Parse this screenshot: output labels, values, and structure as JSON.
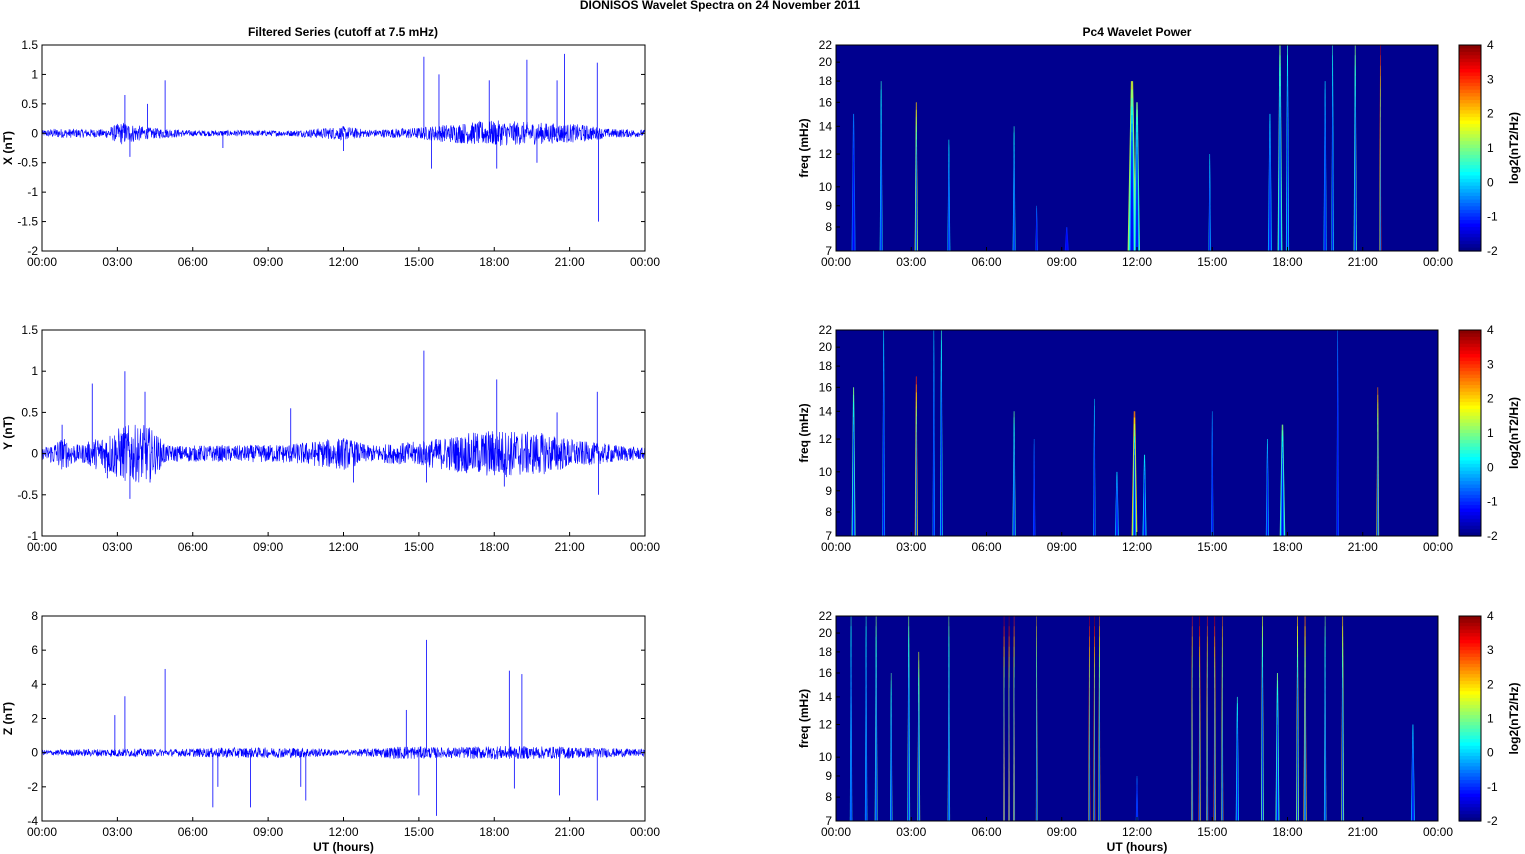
{
  "figure": {
    "title": "DIONISOS Wavelet Spectra on 24 November  2011",
    "left_column_title": "Filtered Series (cutoff at 7.5 mHz)",
    "right_column_title": "Pc4 Wavelet Power"
  },
  "colors": {
    "series_line": "#0000ff",
    "spectrogram_background": "#00008f",
    "axes": "#000000"
  },
  "colormap": "jet",
  "chart_data": [
    {
      "type": "line",
      "title": "Filtered Series (cutoff at 7.5 mHz)",
      "xlabel": "",
      "ylabel": "X (nT)",
      "xlim": [
        0,
        24
      ],
      "ylim": [
        -2,
        1.5
      ],
      "x_ticks": [
        "00:00",
        "03:00",
        "06:00",
        "09:00",
        "12:00",
        "15:00",
        "18:00",
        "21:00",
        "00:00"
      ],
      "y_ticks": [
        "1.5",
        "1",
        "0.5",
        "0",
        "-0.5",
        "-1",
        "-1.5",
        "-2"
      ],
      "y_tick_values": [
        1.5,
        1,
        0.5,
        0,
        -0.5,
        -1,
        -1.5,
        -2
      ],
      "noise_envelope": [
        [
          0,
          0.05
        ],
        [
          0.5,
          0.08
        ],
        [
          2.5,
          0.07
        ],
        [
          3.2,
          0.2
        ],
        [
          4.2,
          0.1
        ],
        [
          6,
          0.05
        ],
        [
          10,
          0.05
        ],
        [
          12,
          0.12
        ],
        [
          13,
          0.06
        ],
        [
          15,
          0.1
        ],
        [
          16,
          0.15
        ],
        [
          18,
          0.22
        ],
        [
          20,
          0.18
        ],
        [
          21.5,
          0.15
        ],
        [
          22.5,
          0.08
        ],
        [
          24,
          0.06
        ]
      ],
      "spikes": [
        [
          3.3,
          0.65
        ],
        [
          3.5,
          -0.4
        ],
        [
          4.2,
          0.5
        ],
        [
          4.9,
          0.9
        ],
        [
          7.2,
          -0.25
        ],
        [
          12,
          -0.3
        ],
        [
          15.2,
          1.3
        ],
        [
          15.5,
          -0.6
        ],
        [
          15.8,
          1.0
        ],
        [
          17.8,
          0.9
        ],
        [
          18.1,
          -0.6
        ],
        [
          19.3,
          1.25
        ],
        [
          19.7,
          -0.5
        ],
        [
          20.5,
          0.9
        ],
        [
          20.8,
          1.35
        ],
        [
          22.1,
          1.2
        ],
        [
          22.15,
          -1.5
        ]
      ]
    },
    {
      "type": "line",
      "title": "",
      "xlabel": "",
      "ylabel": "Y (nT)",
      "xlim": [
        0,
        24
      ],
      "ylim": [
        -1,
        1.5
      ],
      "x_ticks": [
        "00:00",
        "03:00",
        "06:00",
        "09:00",
        "12:00",
        "15:00",
        "18:00",
        "21:00",
        "00:00"
      ],
      "y_ticks": [
        "1.5",
        "1",
        "0.5",
        "0",
        "-0.5",
        "-1"
      ],
      "y_tick_values": [
        1.5,
        1,
        0.5,
        0,
        -0.5,
        -1
      ],
      "noise_envelope": [
        [
          0,
          0.06
        ],
        [
          0.8,
          0.2
        ],
        [
          1.5,
          0.1
        ],
        [
          3.3,
          0.35
        ],
        [
          4.2,
          0.35
        ],
        [
          5,
          0.1
        ],
        [
          8,
          0.1
        ],
        [
          10,
          0.12
        ],
        [
          12,
          0.2
        ],
        [
          13,
          0.1
        ],
        [
          15,
          0.15
        ],
        [
          18,
          0.3
        ],
        [
          20,
          0.25
        ],
        [
          21.5,
          0.15
        ],
        [
          24,
          0.07
        ]
      ],
      "spikes": [
        [
          0.8,
          0.35
        ],
        [
          2,
          0.85
        ],
        [
          2.6,
          -0.3
        ],
        [
          3.3,
          1.0
        ],
        [
          3.5,
          -0.55
        ],
        [
          4.1,
          0.75
        ],
        [
          4.3,
          -0.35
        ],
        [
          9.9,
          0.55
        ],
        [
          12.4,
          -0.35
        ],
        [
          15.2,
          1.25
        ],
        [
          15.3,
          -0.35
        ],
        [
          18.1,
          0.9
        ],
        [
          18.4,
          -0.4
        ],
        [
          20.5,
          0.5
        ],
        [
          22.1,
          0.75
        ],
        [
          22.15,
          -0.5
        ]
      ]
    },
    {
      "type": "line",
      "title": "",
      "xlabel": "UT (hours)",
      "ylabel": "Z (nT)",
      "xlim": [
        0,
        24
      ],
      "ylim": [
        -4,
        8
      ],
      "x_ticks": [
        "00:00",
        "03:00",
        "06:00",
        "09:00",
        "12:00",
        "15:00",
        "18:00",
        "21:00",
        "00:00"
      ],
      "y_ticks": [
        "8",
        "6",
        "4",
        "2",
        "0",
        "-2",
        "-4"
      ],
      "y_tick_values": [
        8,
        6,
        4,
        2,
        0,
        -2,
        -4
      ],
      "noise_envelope": [
        [
          0,
          0.15
        ],
        [
          3,
          0.25
        ],
        [
          5,
          0.2
        ],
        [
          7,
          0.3
        ],
        [
          10.5,
          0.3
        ],
        [
          12,
          0.15
        ],
        [
          14.5,
          0.4
        ],
        [
          16,
          0.3
        ],
        [
          18,
          0.4
        ],
        [
          21,
          0.35
        ],
        [
          24,
          0.2
        ]
      ],
      "spikes": [
        [
          2.9,
          2.2
        ],
        [
          3.3,
          3.3
        ],
        [
          4.9,
          4.9
        ],
        [
          6.8,
          -3.2
        ],
        [
          7.0,
          -2.0
        ],
        [
          8.3,
          -3.2
        ],
        [
          10.3,
          -2.0
        ],
        [
          10.5,
          -2.8
        ],
        [
          14.5,
          2.5
        ],
        [
          15.0,
          -2.5
        ],
        [
          15.3,
          6.6
        ],
        [
          15.7,
          -3.7
        ],
        [
          18.6,
          4.8
        ],
        [
          18.8,
          -2.1
        ],
        [
          19.1,
          4.6
        ],
        [
          20.6,
          -2.5
        ],
        [
          22.1,
          -2.8
        ]
      ]
    },
    {
      "type": "heatmap",
      "title": "Pc4 Wavelet Power",
      "xlabel": "",
      "ylabel": "freq (mHz)",
      "xlim": [
        0,
        24
      ],
      "ylim": [
        7,
        22
      ],
      "log_y": true,
      "x_ticks": [
        "00:00",
        "03:00",
        "06:00",
        "09:00",
        "12:00",
        "15:00",
        "18:00",
        "21:00",
        "00:00"
      ],
      "y_ticks": [
        "22",
        "20",
        "18",
        "16",
        "14",
        "12",
        "10",
        "9",
        "8",
        "7"
      ],
      "y_tick_values": [
        22,
        20,
        18,
        16,
        14,
        12,
        10,
        9,
        8,
        7
      ],
      "colorbar_label": "log2(nT2/Hz)",
      "colorbar_ticks": [
        "4",
        "3",
        "2",
        "1",
        "0",
        "-1",
        "-2"
      ],
      "colorbar_range": [
        -2,
        4
      ],
      "events": [
        [
          0.7,
          15,
          -0.5,
          0.1
        ],
        [
          1.8,
          18,
          0.5,
          0.07
        ],
        [
          3.2,
          16,
          2.0,
          0.08
        ],
        [
          4.5,
          13,
          0.3,
          0.07
        ],
        [
          7.1,
          14,
          0.5,
          0.07
        ],
        [
          8.0,
          9,
          -0.5,
          0.06
        ],
        [
          9.2,
          8,
          -1.0,
          0.1
        ],
        [
          11.8,
          18,
          1.5,
          0.22
        ],
        [
          12.0,
          16,
          1.0,
          0.15
        ],
        [
          14.9,
          12,
          0.2,
          0.06
        ],
        [
          17.3,
          15,
          0.0,
          0.1
        ],
        [
          17.7,
          22,
          1.0,
          0.12
        ],
        [
          18.0,
          22,
          0.5,
          0.08
        ],
        [
          19.5,
          18,
          0.0,
          0.08
        ],
        [
          19.8,
          22,
          0.5,
          0.06
        ],
        [
          20.7,
          22,
          1.0,
          0.08
        ],
        [
          21.7,
          22,
          3.5,
          0.05
        ]
      ]
    },
    {
      "type": "heatmap",
      "title": "",
      "xlabel": "",
      "ylabel": "freq (mHz)",
      "xlim": [
        0,
        24
      ],
      "ylim": [
        7,
        22
      ],
      "log_y": true,
      "x_ticks": [
        "00:00",
        "03:00",
        "06:00",
        "09:00",
        "12:00",
        "15:00",
        "18:00",
        "21:00",
        "00:00"
      ],
      "y_ticks": [
        "22",
        "20",
        "18",
        "16",
        "14",
        "12",
        "10",
        "9",
        "8",
        "7"
      ],
      "y_tick_values": [
        22,
        20,
        18,
        16,
        14,
        12,
        10,
        9,
        8,
        7
      ],
      "colorbar_label": "log2(nT2/Hz)",
      "colorbar_ticks": [
        "4",
        "3",
        "2",
        "1",
        "0",
        "-1",
        "-2"
      ],
      "colorbar_range": [
        -2,
        4
      ],
      "events": [
        [
          0.7,
          16,
          1.0,
          0.1
        ],
        [
          1.9,
          22,
          0.0,
          0.07
        ],
        [
          3.2,
          17,
          3.0,
          0.08
        ],
        [
          3.9,
          22,
          0.0,
          0.06
        ],
        [
          4.2,
          22,
          0.5,
          0.07
        ],
        [
          7.1,
          14,
          0.8,
          0.08
        ],
        [
          7.9,
          12,
          -0.5,
          0.06
        ],
        [
          10.3,
          15,
          0.0,
          0.06
        ],
        [
          11.2,
          10,
          0.0,
          0.1
        ],
        [
          11.9,
          14,
          2.5,
          0.15
        ],
        [
          12.3,
          11,
          0.3,
          0.1
        ],
        [
          15.0,
          14,
          -0.3,
          0.06
        ],
        [
          17.2,
          12,
          0.0,
          0.08
        ],
        [
          17.8,
          13,
          1.0,
          0.14
        ],
        [
          21.6,
          16,
          2.5,
          0.07
        ],
        [
          20.0,
          22,
          -0.5,
          0.06
        ]
      ]
    },
    {
      "type": "heatmap",
      "title": "",
      "xlabel": "UT (hours)",
      "ylabel": "freq (mHz)",
      "xlim": [
        0,
        24
      ],
      "ylim": [
        7,
        22
      ],
      "log_y": true,
      "x_ticks": [
        "00:00",
        "03:00",
        "06:00",
        "09:00",
        "12:00",
        "15:00",
        "18:00",
        "21:00",
        "00:00"
      ],
      "y_ticks": [
        "22",
        "20",
        "18",
        "16",
        "14",
        "12",
        "10",
        "9",
        "8",
        "7"
      ],
      "y_tick_values": [
        22,
        20,
        18,
        16,
        14,
        12,
        10,
        9,
        8,
        7
      ],
      "colorbar_label": "log2(nT2/Hz)",
      "colorbar_ticks": [
        "4",
        "3",
        "2",
        "1",
        "0",
        "-1",
        "-2"
      ],
      "colorbar_range": [
        -2,
        4
      ],
      "events": [
        [
          0.6,
          22,
          0.5,
          0.06
        ],
        [
          1.2,
          22,
          0.5,
          0.06
        ],
        [
          1.6,
          22,
          1.0,
          0.07
        ],
        [
          2.2,
          16,
          0.8,
          0.06
        ],
        [
          2.9,
          22,
          1.0,
          0.07
        ],
        [
          3.3,
          18,
          1.5,
          0.07
        ],
        [
          4.5,
          22,
          1.0,
          0.06
        ],
        [
          6.7,
          22,
          3.5,
          0.05
        ],
        [
          6.9,
          22,
          3.8,
          0.05
        ],
        [
          7.1,
          22,
          3.0,
          0.05
        ],
        [
          8.0,
          22,
          2.0,
          0.04
        ],
        [
          10.1,
          22,
          3.5,
          0.05
        ],
        [
          10.3,
          22,
          3.8,
          0.05
        ],
        [
          10.5,
          22,
          2.5,
          0.05
        ],
        [
          12.0,
          9,
          -0.5,
          0.06
        ],
        [
          14.2,
          22,
          3.0,
          0.05
        ],
        [
          14.5,
          22,
          3.8,
          0.06
        ],
        [
          14.8,
          22,
          3.0,
          0.05
        ],
        [
          15.1,
          22,
          3.5,
          0.06
        ],
        [
          15.4,
          22,
          2.5,
          0.05
        ],
        [
          16.0,
          14,
          0.5,
          0.08
        ],
        [
          17.0,
          22,
          1.5,
          0.07
        ],
        [
          17.6,
          16,
          1.0,
          0.1
        ],
        [
          18.4,
          22,
          2.0,
          0.07
        ],
        [
          18.7,
          22,
          2.5,
          0.08
        ],
        [
          19.5,
          22,
          1.0,
          0.06
        ],
        [
          20.2,
          22,
          2.0,
          0.07
        ],
        [
          23.0,
          12,
          0.0,
          0.1
        ]
      ]
    }
  ]
}
